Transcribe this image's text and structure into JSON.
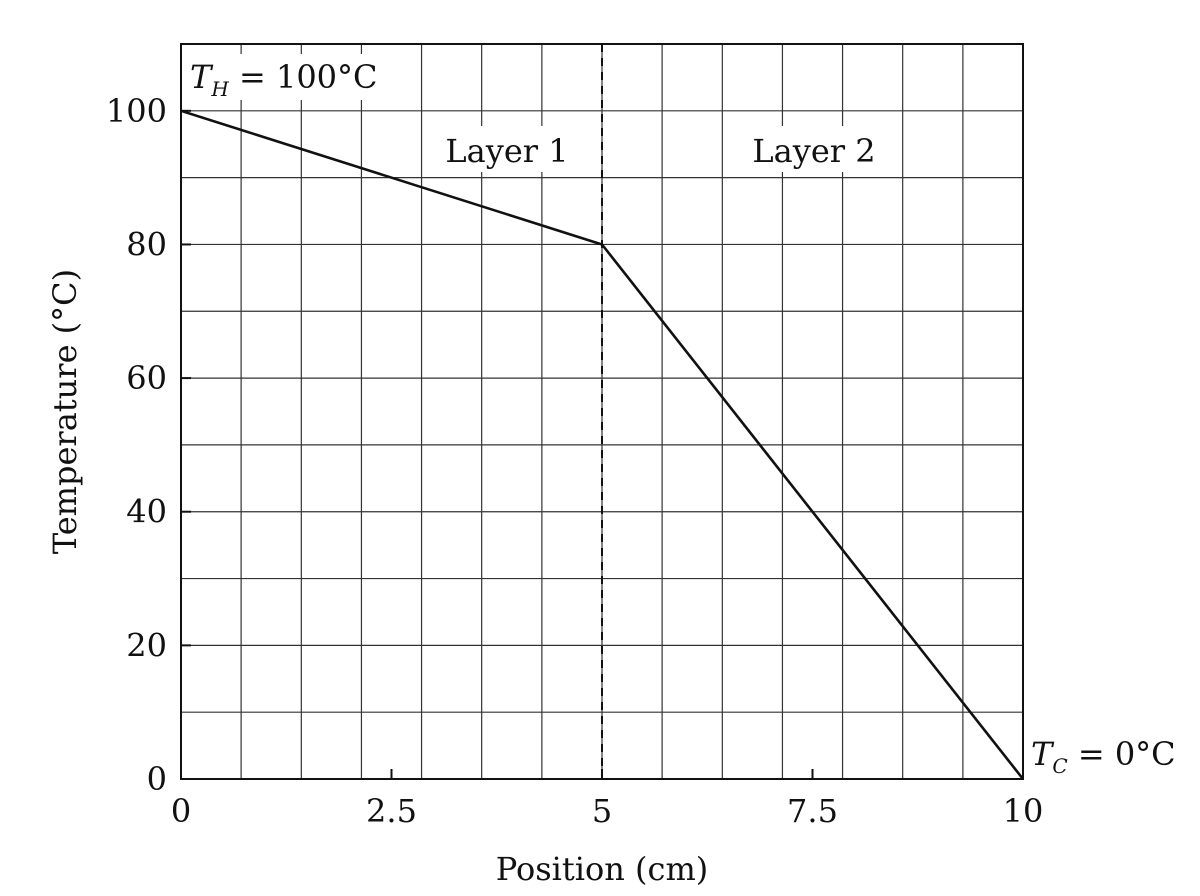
{
  "chart_data": {
    "type": "line",
    "title": "",
    "xlabel": "Position (cm)",
    "ylabel": "Temperature (°C)",
    "xlim": [
      0,
      10
    ],
    "ylim": [
      0,
      110
    ],
    "x_ticks": [
      0,
      2.5,
      5,
      7.5,
      10
    ],
    "x_tick_labels": [
      "0",
      "2.5",
      "5",
      "7.5",
      "10"
    ],
    "y_ticks": [
      0,
      20,
      40,
      60,
      80,
      100
    ],
    "y_tick_labels": [
      "0",
      "20",
      "40",
      "60",
      "80",
      "100"
    ],
    "x_grid": [
      0,
      0.714,
      1.429,
      2.143,
      2.857,
      3.571,
      4.286,
      5,
      5.714,
      6.429,
      7.143,
      7.857,
      8.571,
      9.286,
      10
    ],
    "y_grid": [
      0,
      10,
      20,
      30,
      40,
      50,
      60,
      70,
      80,
      90,
      100,
      110
    ],
    "grid": true,
    "series": [
      {
        "x": [
          0,
          5,
          10
        ],
        "y": [
          100,
          80,
          0
        ],
        "color": "#111111"
      }
    ],
    "layer_boundary_x": 5,
    "annotations": {
      "layer1": "Layer 1",
      "layer2": "Layer 2",
      "th": {
        "symbol": "T",
        "subscript": "H",
        "rest": " = 100°C"
      },
      "tc": {
        "symbol": "T",
        "subscript": "C",
        "rest": " = 0°C"
      }
    }
  }
}
